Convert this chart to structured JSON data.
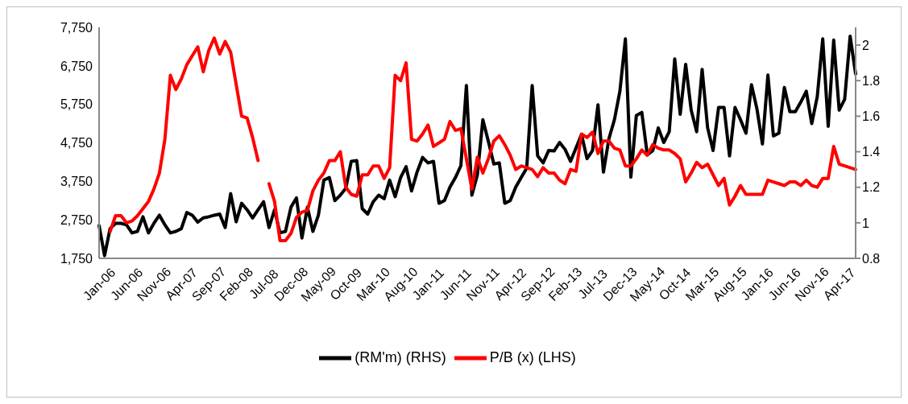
{
  "chart_data": {
    "type": "line",
    "categories": [
      "Jan-06",
      null,
      null,
      null,
      null,
      "Jun-06",
      null,
      null,
      null,
      null,
      "Nov-06",
      null,
      null,
      null,
      null,
      "Apr-07",
      null,
      null,
      null,
      null,
      "Sep-07",
      null,
      null,
      null,
      null,
      "Feb-08",
      null,
      null,
      null,
      null,
      "Jul-08",
      null,
      null,
      null,
      null,
      "Dec-08",
      null,
      null,
      null,
      null,
      "May-09",
      null,
      null,
      null,
      null,
      "Oct-09",
      null,
      null,
      null,
      null,
      "Mar-10",
      null,
      null,
      null,
      null,
      "Aug-10",
      null,
      null,
      null,
      null,
      "Jan-11",
      null,
      null,
      null,
      null,
      "Jun-11",
      null,
      null,
      null,
      null,
      "Nov-11",
      null,
      null,
      null,
      null,
      "Apr-12",
      null,
      null,
      null,
      null,
      "Sep-12",
      null,
      null,
      null,
      null,
      "Feb-13",
      null,
      null,
      null,
      null,
      "Jul-13",
      null,
      null,
      null,
      null,
      "Dec-13",
      null,
      null,
      null,
      null,
      "May-14",
      null,
      null,
      null,
      null,
      "Oct-14",
      null,
      null,
      null,
      null,
      "Mar-15",
      null,
      null,
      null,
      null,
      "Aug-15",
      null,
      null,
      null,
      null,
      "Jan-16",
      null,
      null,
      null,
      null,
      "Jun-16",
      null,
      null,
      null,
      null,
      "Nov-16",
      null,
      null,
      null,
      null,
      "Apr-17",
      null,
      null,
      null
    ],
    "series": [
      {
        "name": "(RM'm) (RHS)",
        "color": "#000000",
        "axis": "y",
        "values": [
          2600,
          1820,
          2520,
          2660,
          2660,
          2620,
          2410,
          2450,
          2830,
          2410,
          2660,
          2870,
          2620,
          2410,
          2450,
          2520,
          2940,
          2870,
          2690,
          2800,
          2830,
          2870,
          2900,
          2550,
          3430,
          2700,
          3180,
          3010,
          2800,
          3010,
          3220,
          2550,
          3010,
          2410,
          2450,
          3080,
          3320,
          2280,
          3080,
          2450,
          2870,
          3780,
          3850,
          3250,
          3390,
          3570,
          4270,
          4290,
          3040,
          2900,
          3220,
          3390,
          3300,
          3780,
          3350,
          3850,
          4130,
          3500,
          3990,
          4370,
          4230,
          4270,
          3180,
          3250,
          3600,
          3850,
          4160,
          6240,
          3390,
          3920,
          5350,
          4790,
          4200,
          4230,
          3180,
          3250,
          3600,
          3850,
          4090,
          6240,
          4410,
          4230,
          4550,
          4540,
          4760,
          4580,
          4270,
          4620,
          4970,
          4340,
          4550,
          5740,
          3990,
          4860,
          5350,
          6090,
          7450,
          3860,
          5460,
          5540,
          4440,
          4550,
          5140,
          4760,
          5040,
          6930,
          5490,
          6790,
          5600,
          5040,
          6660,
          5140,
          4550,
          5670,
          5670,
          4410,
          5670,
          5350,
          5000,
          6260,
          5630,
          4720,
          6510,
          4930,
          5000,
          6190,
          5560,
          5560,
          5810,
          6090,
          5250,
          5950,
          7450,
          5180,
          7420,
          5600,
          5880,
          7520,
          6540
        ]
      },
      {
        "name": "P/B (x) (LHS)",
        "color": "#ff0000",
        "axis": "y2",
        "values": [
          null,
          null,
          0.95,
          1.04,
          1.04,
          1.0,
          1.01,
          1.04,
          1.08,
          1.12,
          1.19,
          1.28,
          1.47,
          1.83,
          1.75,
          1.81,
          1.89,
          1.94,
          1.99,
          1.85,
          1.97,
          2.04,
          1.95,
          2.02,
          1.96,
          1.78,
          1.6,
          1.59,
          1.48,
          1.35,
          null,
          1.22,
          1.12,
          0.9,
          0.9,
          0.94,
          1.03,
          1.06,
          1.07,
          1.18,
          1.24,
          1.28,
          1.35,
          1.35,
          1.4,
          1.2,
          1.16,
          1.15,
          1.27,
          1.27,
          1.32,
          1.32,
          1.25,
          1.31,
          1.83,
          1.8,
          1.9,
          1.47,
          1.46,
          1.5,
          1.55,
          1.43,
          1.45,
          1.47,
          1.57,
          1.52,
          1.53,
          1.36,
          1.19,
          1.37,
          1.28,
          1.36,
          1.46,
          1.49,
          1.44,
          1.38,
          1.3,
          1.32,
          1.31,
          1.3,
          1.26,
          1.31,
          1.28,
          1.28,
          1.24,
          1.22,
          1.3,
          1.29,
          1.5,
          1.48,
          1.51,
          1.39,
          1.46,
          1.46,
          1.42,
          1.41,
          1.32,
          1.32,
          1.36,
          1.41,
          1.38,
          1.44,
          1.42,
          1.41,
          1.41,
          1.39,
          1.36,
          1.23,
          1.28,
          1.34,
          1.31,
          1.33,
          1.27,
          1.21,
          1.25,
          1.1,
          1.15,
          1.21,
          1.16,
          1.16,
          1.16,
          1.16,
          1.24,
          1.23,
          1.22,
          1.21,
          1.23,
          1.23,
          1.21,
          1.24,
          1.21,
          1.2,
          1.25,
          1.25,
          1.43,
          1.33,
          1.32,
          1.31,
          1.3
        ]
      }
    ],
    "ylim": [
      1750,
      7750
    ],
    "yticks": [
      {
        "value": 1750,
        "label": "1,750"
      },
      {
        "value": 2750,
        "label": "2,750"
      },
      {
        "value": 3750,
        "label": "3,750"
      },
      {
        "value": 4750,
        "label": "4,750"
      },
      {
        "value": 5750,
        "label": "5,750"
      },
      {
        "value": 6750,
        "label": "6,750"
      },
      {
        "value": 7750,
        "label": "7,750"
      }
    ],
    "y2lim": [
      0.8,
      2.1
    ],
    "y2ticks": [
      0.8,
      1,
      1.2,
      1.4,
      1.6,
      1.8,
      2
    ],
    "legend": "bottom",
    "marker": "none",
    "line_style": "solid",
    "grid": false
  }
}
